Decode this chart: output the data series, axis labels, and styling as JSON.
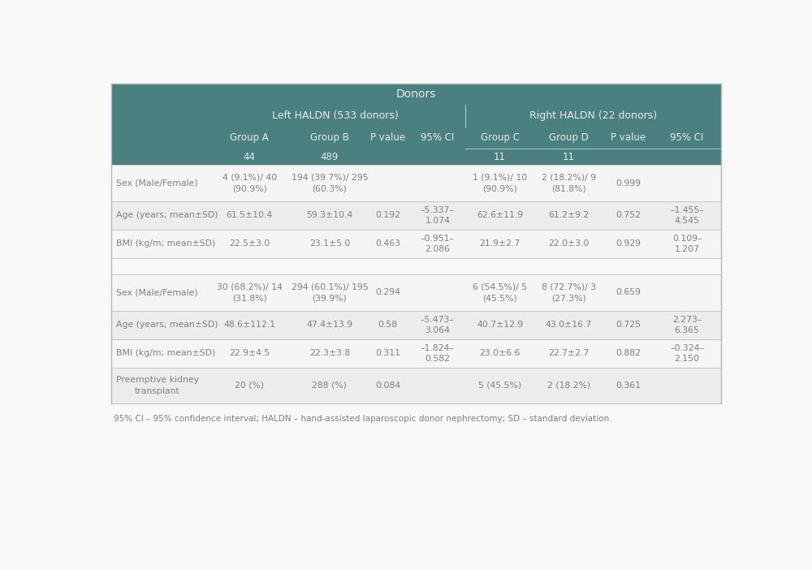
{
  "title_section": "Donors",
  "header_color": "#4a8080",
  "subheader_color": "#4a8080",
  "row_color_light": "#f5f5f5",
  "row_color_dark": "#ececec",
  "text_color_header": "#e8e8e8",
  "text_color_body": "#808080",
  "separator_color": "#d0d0d0",
  "background_color": "#f8f8f8",
  "gap_color": "#f8f8f8",
  "footnote": "95% CI – 95% confidence interval; HALDN – hand-assisted laparoscopic donor nephrectomy; SD – standard deviation.",
  "donors_rows": [
    {
      "label": "Sex (Male/Female)",
      "groupA": "4 (9.1%)/ 40\n(90.9%)",
      "groupB": "194 (39.7%)/ 295\n(60.3%)",
      "pvalue": "",
      "ci": "",
      "groupC": "1 (9.1%)/ 10\n(90.9%)",
      "groupD": "2 (18.2%)/ 9\n(81.8%)",
      "pvalue2": "0.999",
      "ci2": ""
    },
    {
      "label": "Age (years; mean±SD)",
      "groupA": "61.5±10.4",
      "groupB": "59.3±10.4",
      "pvalue": "0.192",
      "ci": "–5.337–\n1.074",
      "groupC": "62.6±11.9",
      "groupD": "61.2±9.2",
      "pvalue2": "0.752",
      "ci2": "–1.455–\n4.545"
    },
    {
      "label": "BMI (kg/m; mean±SD)",
      "groupA": "22.5±3.0",
      "groupB": "23.1±5.0",
      "pvalue": "0.463",
      "ci": "–0.951–\n2.086",
      "groupC": "21.9±2.7",
      "groupD": "22.0±3.0",
      "pvalue2": "0.929",
      "ci2": "0.109–\n1.207"
    }
  ],
  "recipients_rows": [
    {
      "label": "Sex (Male/Female)",
      "groupA": "30 (68.2%)/ 14\n(31.8%)",
      "groupB": "294 (60.1%)/ 195\n(39.9%)",
      "pvalue": "0.294",
      "ci": "",
      "groupC": "6 (54.5%)/ 5\n(45.5%)",
      "groupD": "8 (72.7%)/ 3\n(27.3%)",
      "pvalue2": "0.659",
      "ci2": ""
    },
    {
      "label": "Age (years; mean±SD)",
      "groupA": "48.6±112.1",
      "groupB": "47.4±13.9",
      "pvalue": "0.58",
      "ci": "–5.473–\n3.064",
      "groupC": "40.7±12.9",
      "groupD": "43.0±16.7",
      "pvalue2": "0.725",
      "ci2": "2.273–\n6.365"
    },
    {
      "label": "BMI (kg/m; mean±SD)",
      "groupA": "22.9±4.5",
      "groupB": "22.3±3.8",
      "pvalue": "0.311",
      "ci": "–1.824–\n0.582",
      "groupC": "23.0±6.6",
      "groupD": "22.7±2.7",
      "pvalue2": "0.882",
      "ci2": "–0.324–\n2.150"
    },
    {
      "label": "Preemptive kidney\ntransplant",
      "groupA": "20 (%)",
      "groupB": "288 (%)",
      "pvalue": "0.084",
      "ci": "",
      "groupC": "5 (45.5%)",
      "groupD": "2 (18.2%)",
      "pvalue2": "0.361",
      "ci2": ""
    }
  ]
}
